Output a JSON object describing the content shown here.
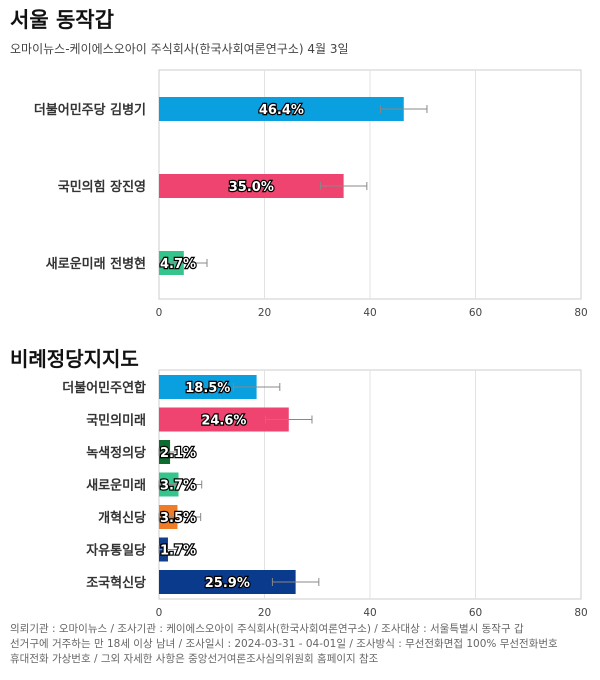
{
  "title": "서울 동작갑",
  "subtitle": "오마이뉴스-케이에스오아이 주식회사(한국사회여론연구소) 4월 3일",
  "chart_data": [
    {
      "type": "bar",
      "orientation": "horizontal",
      "title": "",
      "categories": [
        "더불어민주당 김병기",
        "국민의힘 장진영",
        "새로운미래 전병현"
      ],
      "values": [
        46.4,
        35.0,
        4.7
      ],
      "value_labels": [
        "46.4%",
        "35.0%",
        "4.7%"
      ],
      "error_margin": 4.4,
      "colors": [
        "#0a9fde",
        "#ef4370",
        "#34c48c"
      ],
      "xlim": [
        0,
        80
      ],
      "ticks": [
        "0",
        "20",
        "40",
        "60",
        "80"
      ],
      "grid": true
    },
    {
      "type": "bar",
      "orientation": "horizontal",
      "title": "비례정당지지도",
      "categories": [
        "더불어민주연합",
        "국민의미래",
        "녹색정의당",
        "새로운미래",
        "개혁신당",
        "자유통일당",
        "조국혁신당"
      ],
      "values": [
        18.5,
        24.6,
        2.1,
        3.7,
        3.5,
        1.7,
        25.9
      ],
      "value_labels": [
        "18.5%",
        "24.6%",
        "2.1%",
        "3.7%",
        "3.5%",
        "1.7%",
        "25.9%"
      ],
      "error_margin": 4.4,
      "colors": [
        "#0a9fde",
        "#ef4370",
        "#0e6b2f",
        "#34c48c",
        "#ef7c26",
        "#123f8c",
        "#0a3a8c"
      ],
      "xlim": [
        0,
        80
      ],
      "ticks": [
        "0",
        "20",
        "40",
        "60",
        "80"
      ],
      "grid": true
    }
  ],
  "footer": {
    "line1": "의뢰기관 : 오마이뉴스 / 조사기관 : 케이에스오아이 주식회사(한국사회여론연구소) / 조사대상 : 서울특별시 동작구 갑",
    "line2": "선거구에 거주하는 만 18세 이상 남녀 / 조사일시 : 2024-03-31 - 04-01일 / 조사방식 : 무선전화면접 100% 무선전화번호",
    "line3": "휴대전화 가상번호 / 그외 자세한 사항은 중앙선거여론조사심의위원회 홈페이지 참조"
  }
}
